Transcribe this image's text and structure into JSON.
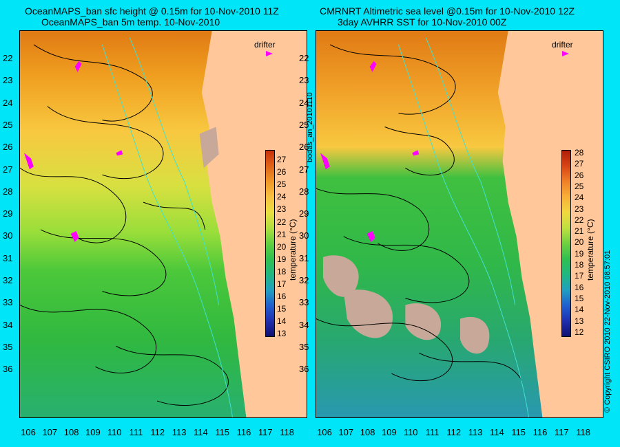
{
  "titles": {
    "left_line1": "OceanMAPS_ban sfc height @ 0.15m for 10-Nov-2010 11Z",
    "left_line2": "OceanMAPS_ban 5m temp. 10-Nov-2010",
    "right_line1": "CMRNRT Altimetric sea level  @0.15m  for 10-Nov-2010 12Z",
    "right_line2": "3day AVHRR SST for 10-Nov-2010 00Z"
  },
  "axes": {
    "latitudes": [
      "22",
      "23",
      "24",
      "25",
      "26",
      "27",
      "28",
      "29",
      "30",
      "31",
      "32",
      "33",
      "34",
      "35",
      "36"
    ],
    "longitudes": [
      "106",
      "107",
      "108",
      "109",
      "110",
      "111",
      "112",
      "113",
      "114",
      "115",
      "116",
      "117",
      "118"
    ]
  },
  "colorbar_left": {
    "ticks": [
      "27",
      "26",
      "25",
      "24",
      "23",
      "22",
      "21",
      "20",
      "19",
      "18",
      "17",
      "16",
      "15",
      "14",
      "13"
    ],
    "title": "temperature (°C)"
  },
  "colorbar_right": {
    "ticks": [
      "28",
      "27",
      "26",
      "25",
      "24",
      "23",
      "22",
      "21",
      "20",
      "19",
      "18",
      "17",
      "16",
      "15",
      "14",
      "13",
      "12"
    ],
    "title": "temperature (°C)"
  },
  "legend": {
    "drifter": "drifter"
  },
  "side_text": {
    "middle": "bodas_an_20101110",
    "right": "© Copyright CSIRO 2010   22-Nov-2010 08:57:01"
  },
  "colors": {
    "background": "#00e5f7",
    "land": "#ffc79a",
    "drifter": "#ff00ff",
    "contour": "#000000",
    "isobath": "#40e0d0",
    "cloud": "#c8a898"
  }
}
